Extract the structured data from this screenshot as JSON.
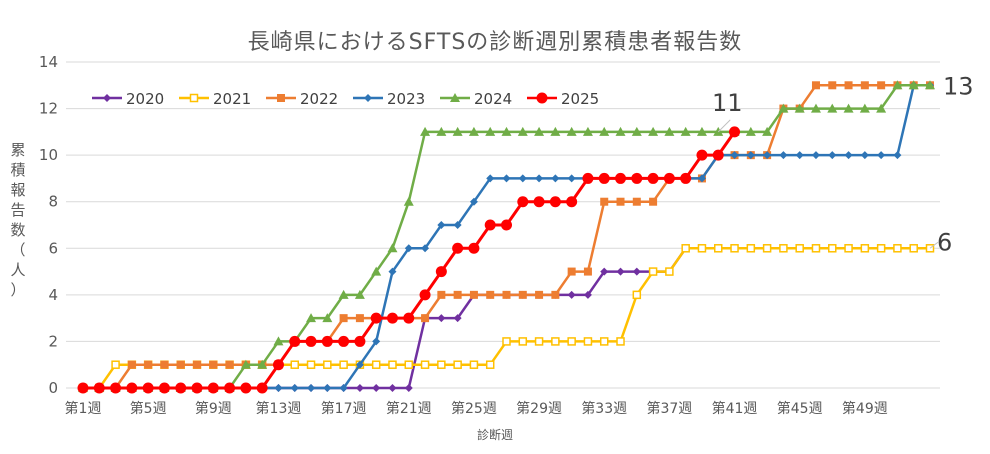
{
  "chart_data": {
    "type": "line",
    "title": "長崎県におけるSFTSの診断週別累積患者報告数",
    "xlabel": "診断週",
    "ylabel": "累積報告数（人）",
    "ylim": [
      0,
      14
    ],
    "yticks": [
      0,
      2,
      4,
      6,
      8,
      10,
      12,
      14
    ],
    "x_tick_labels": [
      "第1週",
      "第5週",
      "第9週",
      "第13週",
      "第17週",
      "第21週",
      "第25週",
      "第29週",
      "第33週",
      "第37週",
      "第41週",
      "第45週",
      "第49週"
    ],
    "x_tick_weeks": [
      1,
      5,
      9,
      13,
      17,
      21,
      25,
      29,
      33,
      37,
      41,
      45,
      49
    ],
    "weeks": 53,
    "grid": "horizontal",
    "legend_position": "top-left",
    "annotations": [
      {
        "text": "13",
        "week": 53,
        "value": 13
      },
      {
        "text": "11",
        "week": 40,
        "value": 11
      },
      {
        "text": "6",
        "week": 53,
        "value": 6
      }
    ],
    "series": [
      {
        "name": "2020",
        "color": "#7030a0",
        "marker": "diamond",
        "values": [
          0,
          0,
          0,
          0,
          0,
          0,
          0,
          0,
          0,
          0,
          0,
          0,
          0,
          0,
          0,
          0,
          0,
          0,
          0,
          0,
          0,
          3,
          3,
          3,
          4,
          4,
          4,
          4,
          4,
          4,
          4,
          4,
          5,
          5,
          5,
          5,
          5,
          6,
          6,
          6,
          6,
          6,
          6,
          6,
          6,
          6,
          6,
          6,
          6,
          6,
          6,
          6,
          6
        ]
      },
      {
        "name": "2021",
        "color": "#ffc000",
        "marker": "square-open",
        "values": [
          0,
          0,
          1,
          1,
          1,
          1,
          1,
          1,
          1,
          1,
          1,
          1,
          1,
          1,
          1,
          1,
          1,
          1,
          1,
          1,
          1,
          1,
          1,
          1,
          1,
          1,
          2,
          2,
          2,
          2,
          2,
          2,
          2,
          2,
          4,
          5,
          5,
          6,
          6,
          6,
          6,
          6,
          6,
          6,
          6,
          6,
          6,
          6,
          6,
          6,
          6,
          6,
          6
        ]
      },
      {
        "name": "2022",
        "color": "#ed7d31",
        "marker": "square",
        "values": [
          0,
          0,
          0,
          1,
          1,
          1,
          1,
          1,
          1,
          1,
          1,
          1,
          1,
          2,
          2,
          2,
          3,
          3,
          3,
          3,
          3,
          3,
          4,
          4,
          4,
          4,
          4,
          4,
          4,
          4,
          5,
          5,
          8,
          8,
          8,
          8,
          9,
          9,
          9,
          10,
          10,
          10,
          10,
          12,
          12,
          13,
          13,
          13,
          13,
          13,
          13,
          13,
          13
        ]
      },
      {
        "name": "2023",
        "color": "#2e75b6",
        "marker": "diamond",
        "values": [
          0,
          0,
          0,
          0,
          0,
          0,
          0,
          0,
          0,
          0,
          0,
          0,
          0,
          0,
          0,
          0,
          0,
          1,
          2,
          5,
          6,
          6,
          7,
          7,
          8,
          9,
          9,
          9,
          9,
          9,
          9,
          9,
          9,
          9,
          9,
          9,
          9,
          9,
          9,
          10,
          10,
          10,
          10,
          10,
          10,
          10,
          10,
          10,
          10,
          10,
          10,
          13,
          13
        ]
      },
      {
        "name": "2024",
        "color": "#70ad47",
        "marker": "triangle",
        "values": [
          0,
          0,
          0,
          0,
          0,
          0,
          0,
          0,
          0,
          0,
          1,
          1,
          2,
          2,
          3,
          3,
          4,
          4,
          5,
          6,
          8,
          11,
          11,
          11,
          11,
          11,
          11,
          11,
          11,
          11,
          11,
          11,
          11,
          11,
          11,
          11,
          11,
          11,
          11,
          11,
          11,
          11,
          11,
          12,
          12,
          12,
          12,
          12,
          12,
          12,
          13,
          13,
          13
        ]
      },
      {
        "name": "2025",
        "color": "#ff0000",
        "marker": "circle",
        "values": [
          0,
          0,
          0,
          0,
          0,
          0,
          0,
          0,
          0,
          0,
          0,
          0,
          1,
          2,
          2,
          2,
          2,
          2,
          3,
          3,
          3,
          4,
          5,
          6,
          6,
          7,
          7,
          8,
          8,
          8,
          8,
          9,
          9,
          9,
          9,
          9,
          9,
          9,
          10,
          10,
          11
        ]
      }
    ]
  }
}
